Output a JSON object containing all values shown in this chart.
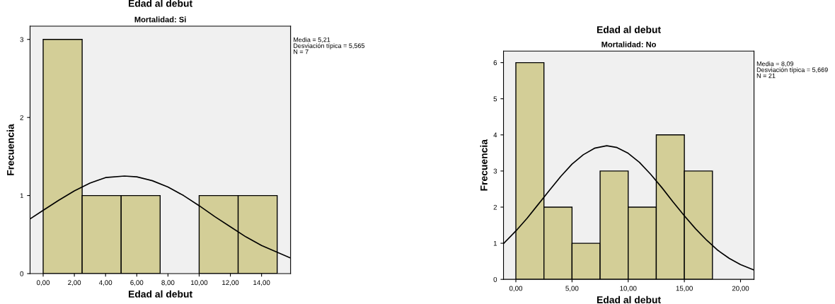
{
  "chart_data": [
    {
      "type": "histogram",
      "title": "Edad al debut",
      "subtitle": "Mortalidad: Si",
      "xlabel": "Edad al debut",
      "ylabel": "Frecuencia",
      "bins": [
        0,
        2.5,
        5,
        7.5,
        10,
        12.5,
        15
      ],
      "values": [
        3,
        1,
        1,
        0,
        1,
        1
      ],
      "color": "#d3ce97",
      "xlim": [
        -0.84,
        15.86
      ],
      "xticks": [
        {
          "value": 0,
          "label": "0,00"
        },
        {
          "value": 2,
          "label": "2,00"
        },
        {
          "value": 4,
          "label": "4,00"
        },
        {
          "value": 6,
          "label": "6,00"
        },
        {
          "value": 8,
          "label": "8,00"
        },
        {
          "value": 10,
          "label": "10,00"
        },
        {
          "value": 12,
          "label": "12,00"
        },
        {
          "value": 14,
          "label": "14,00"
        }
      ],
      "ylim": [
        0,
        3.17
      ],
      "yticks": [
        0,
        1,
        2,
        3
      ],
      "grid": false,
      "legend": false,
      "series": [
        {
          "type": "line",
          "color": "#000000",
          "x": [
            -0.84,
            0,
            1,
            2,
            3,
            4,
            5.21,
            6,
            7,
            8,
            9,
            10,
            11,
            12,
            13,
            14,
            15.86
          ],
          "values": [
            0.7,
            0.81,
            0.94,
            1.06,
            1.16,
            1.23,
            1.25,
            1.24,
            1.19,
            1.11,
            1.0,
            0.87,
            0.73,
            0.6,
            0.47,
            0.36,
            0.2
          ]
        }
      ],
      "annotations": [
        "Media = 5,21",
        "Desviación típica = 5,565",
        "N = 7"
      ]
    },
    {
      "type": "histogram",
      "title": "Edad al debut",
      "subtitle": "Mortalidad: No",
      "xlabel": "Edad al debut",
      "ylabel": "Frecuencia",
      "bins": [
        0,
        2.5,
        5,
        7.5,
        10,
        12.5,
        15,
        17.5
      ],
      "values": [
        6,
        2,
        1,
        3,
        2,
        4,
        3
      ],
      "color": "#d3ce97",
      "xlim": [
        -1.1,
        21.2
      ],
      "xticks": [
        {
          "value": 0,
          "label": "0,00"
        },
        {
          "value": 5,
          "label": "5,00"
        },
        {
          "value": 10,
          "label": "10,00"
        },
        {
          "value": 15,
          "label": "15,00"
        },
        {
          "value": 20,
          "label": "20,00"
        }
      ],
      "ylim": [
        0,
        6.32
      ],
      "yticks": [
        0,
        1,
        2,
        3,
        4,
        5,
        6
      ],
      "grid": false,
      "legend": false,
      "series": [
        {
          "type": "line",
          "color": "#000000",
          "x": [
            -1.1,
            0,
            1,
            2,
            3,
            4,
            5,
            6,
            7,
            8.09,
            9,
            10,
            11,
            12,
            13,
            14,
            15,
            16,
            17,
            18,
            19,
            20,
            21.2
          ],
          "values": [
            0.99,
            1.34,
            1.69,
            2.08,
            2.47,
            2.85,
            3.19,
            3.45,
            3.63,
            3.7,
            3.65,
            3.49,
            3.24,
            2.91,
            2.54,
            2.14,
            1.76,
            1.4,
            1.08,
            0.8,
            0.58,
            0.41,
            0.26
          ]
        }
      ],
      "annotations": [
        "Media = 8,09",
        "Desviación típica = 5,669",
        "N = 21"
      ]
    }
  ]
}
